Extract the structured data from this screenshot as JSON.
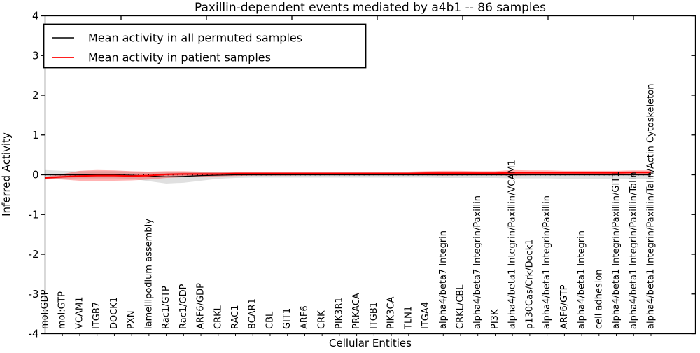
{
  "title": "Paxillin-dependent events mediated by a4b1 -- 86 samples",
  "axes": {
    "xlabel": "Cellular Entities",
    "ylabel": "Inferred Activity",
    "ytick_labels": [
      "4",
      "3",
      "2",
      "1",
      "0",
      "-1",
      "-2",
      "-3",
      "-4"
    ]
  },
  "colors": {
    "permuted_line": "#000000",
    "patient_line": "#ff0000",
    "spine": "#000000"
  },
  "chart_data": {
    "type": "line",
    "title": "Paxillin-dependent events mediated by a4b1 -- 86 samples",
    "xlabel": "Cellular Entities",
    "ylabel": "Inferred Activity",
    "ylim": [
      -4,
      4
    ],
    "yticks": [
      4,
      3,
      2,
      1,
      0,
      -1,
      -2,
      -3,
      -4
    ],
    "grid": false,
    "legend_position": "upper left",
    "reference_line": {
      "y": 0,
      "style": "dotted",
      "color": "#000000"
    },
    "categories": [
      "mol:GDP",
      "mol:GTP",
      "VCAM1",
      "ITGB7",
      "DOCK1",
      "PXN",
      "lamellipodium assembly",
      "Rac1/GTP",
      "Rac1/GDP",
      "ARF6/GDP",
      "CRKL",
      "RAC1",
      "BCAR1",
      "CBL",
      "GIT1",
      "ARF6",
      "CRK",
      "PIK3R1",
      "PRKACA",
      "ITGB1",
      "PIK3CA",
      "TLN1",
      "ITGA4",
      "alpha4/beta7 Integrin",
      "CRKL/CBL",
      "alpha4/beta7 Integrin/Paxillin",
      "PI3K",
      "alpha4/beta1 Integrin/Paxillin/VCAM1",
      "p130Cas/Crk/Dock1",
      "alpha4/beta1 Integrin/Paxillin",
      "ARF6/GTP",
      "alpha4/beta1 Integrin",
      "cell adhesion",
      "alpha4/beta1 Integrin/Paxillin/GIT1",
      "alpha4/beta1 Integrin/Paxillin/Talin",
      "alpha4/beta1 Integrin/Paxillin/Talin/Actin Cytoskeleton"
    ],
    "series": [
      {
        "name": "Mean activity in all permuted samples",
        "color": "#000000",
        "values": [
          0,
          0,
          0,
          0,
          0,
          -0.01,
          -0.03,
          -0.05,
          -0.04,
          -0.02,
          -0.01,
          0,
          0,
          0,
          0,
          0,
          0,
          0,
          0,
          0,
          0,
          0,
          0,
          0,
          0,
          0,
          0,
          0,
          0,
          0,
          0,
          0,
          0,
          0,
          0,
          0
        ],
        "band_lo": [
          -0.12,
          -0.1,
          -0.09,
          -0.09,
          -0.09,
          -0.1,
          -0.16,
          -0.22,
          -0.2,
          -0.15,
          -0.1,
          -0.08,
          -0.07,
          -0.07,
          -0.07,
          -0.07,
          -0.07,
          -0.07,
          -0.07,
          -0.07,
          -0.07,
          -0.07,
          -0.07,
          -0.08,
          -0.08,
          -0.08,
          -0.08,
          -0.09,
          -0.09,
          -0.09,
          -0.1,
          -0.1,
          -0.1,
          -0.1,
          -0.1,
          -0.1
        ],
        "band_hi": [
          0.12,
          0.1,
          0.09,
          0.09,
          0.09,
          0.08,
          0.08,
          0.07,
          0.07,
          0.07,
          0.07,
          0.07,
          0.07,
          0.07,
          0.07,
          0.07,
          0.07,
          0.07,
          0.07,
          0.07,
          0.07,
          0.07,
          0.07,
          0.07,
          0.07,
          0.07,
          0.07,
          0.07,
          0.07,
          0.07,
          0.07,
          0.07,
          0.07,
          0.07,
          0.06,
          0.06
        ]
      },
      {
        "name": "Mean activity in patient samples",
        "color": "#ff0000",
        "values": [
          -0.08,
          -0.05,
          -0.03,
          -0.02,
          -0.02,
          -0.03,
          -0.02,
          0.01,
          0.02,
          0.02,
          0.02,
          0.03,
          0.03,
          0.03,
          0.03,
          0.03,
          0.03,
          0.03,
          0.03,
          0.03,
          0.03,
          0.03,
          0.04,
          0.04,
          0.04,
          0.04,
          0.04,
          0.05,
          0.05,
          0.05,
          0.05,
          0.05,
          0.05,
          0.05,
          0.06,
          0.06
        ],
        "band_lo": [
          -0.1,
          -0.12,
          -0.15,
          -0.16,
          -0.15,
          -0.14,
          -0.12,
          -0.08,
          -0.06,
          -0.05,
          -0.04,
          -0.03,
          -0.02,
          -0.02,
          -0.02,
          -0.01,
          -0.01,
          -0.01,
          -0.01,
          -0.01,
          -0.01,
          -0.01,
          -0.01,
          -0.02,
          -0.01,
          -0.01,
          -0.01,
          -0.02,
          -0.01,
          0,
          0,
          0,
          0.01,
          0.01,
          0.01,
          0.02
        ],
        "band_hi": [
          -0.05,
          0.02,
          0.1,
          0.12,
          0.11,
          0.09,
          0.08,
          0.09,
          0.09,
          0.08,
          0.08,
          0.08,
          0.08,
          0.08,
          0.08,
          0.08,
          0.08,
          0.08,
          0.08,
          0.08,
          0.08,
          0.08,
          0.09,
          0.1,
          0.1,
          0.09,
          0.09,
          0.12,
          0.11,
          0.11,
          0.1,
          0.1,
          0.1,
          0.1,
          0.11,
          0.11
        ]
      }
    ]
  }
}
